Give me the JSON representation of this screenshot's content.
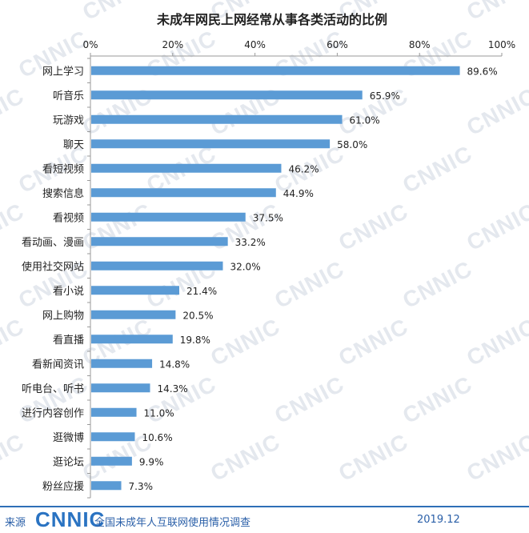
{
  "chart_data": {
    "type": "bar",
    "orientation": "horizontal",
    "title": "未成年网民上网经常从事各类活动的比例",
    "xlim": [
      0,
      100
    ],
    "x_ticks": [
      "0%",
      "20%",
      "40%",
      "60%",
      "80%",
      "100%"
    ],
    "grid": false,
    "bar_color": "#5b9bd5",
    "categories": [
      "网上学习",
      "听音乐",
      "玩游戏",
      "聊天",
      "看短视频",
      "搜索信息",
      "看视频",
      "看动画、漫画",
      "使用社交网站",
      "看小说",
      "网上购物",
      "看直播",
      "看新闻资讯",
      "听电台、听书",
      "进行内容创作",
      "逛微博",
      "逛论坛",
      "粉丝应援"
    ],
    "values": [
      89.6,
      65.9,
      61.0,
      58.0,
      46.2,
      44.9,
      37.5,
      33.2,
      32.0,
      21.4,
      20.5,
      19.8,
      14.8,
      14.3,
      11.0,
      10.6,
      9.9,
      7.3
    ],
    "value_labels": [
      "89.6%",
      "65.9%",
      "61.0%",
      "58.0%",
      "46.2%",
      "44.9%",
      "37.5%",
      "33.2%",
      "32.0%",
      "21.4%",
      "20.5%",
      "19.8%",
      "14.8%",
      "14.3%",
      "11.0%",
      "10.6%",
      "9.9%",
      "7.3%"
    ]
  },
  "footer": {
    "source_label": "来源",
    "logo_text": "CNNIC",
    "survey_name": "全国未成年人互联网使用情况调查",
    "date": "2019.12"
  },
  "watermark": {
    "text": "CNNIC"
  }
}
